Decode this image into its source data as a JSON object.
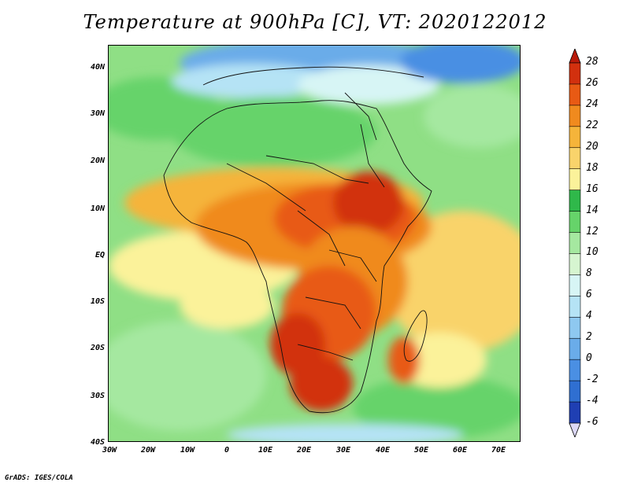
{
  "title": "Temperature at 900hPa [C], VT: 2020122012",
  "footer": "GrADS: IGES/COLA",
  "lat_ticks": [
    "40N",
    "30N",
    "20N",
    "10N",
    "EQ",
    "10S",
    "20S",
    "30S",
    "40S"
  ],
  "lon_ticks": [
    "30W",
    "20W",
    "10W",
    "0",
    "10E",
    "20E",
    "30E",
    "40E",
    "50E",
    "60E",
    "70E"
  ],
  "colorbar": {
    "labels": [
      "28",
      "26",
      "24",
      "22",
      "20",
      "18",
      "16",
      "14",
      "12",
      "10",
      "8",
      "6",
      "4",
      "2",
      "0",
      "-2",
      "-4",
      "-6"
    ],
    "colors": [
      "#2b1a8e",
      "#1f3fb3",
      "#2f6fd1",
      "#4a8fe3",
      "#6aace9",
      "#8ec8f0",
      "#b5e3f5",
      "#d7f5f5",
      "#d6f5d0",
      "#a5e8a0",
      "#66d36a",
      "#2fb84a",
      "#fbf29a",
      "#f9d36b",
      "#f5b43a",
      "#f08a1e",
      "#e85a14",
      "#d2300e",
      "#b81a0a"
    ]
  }
}
